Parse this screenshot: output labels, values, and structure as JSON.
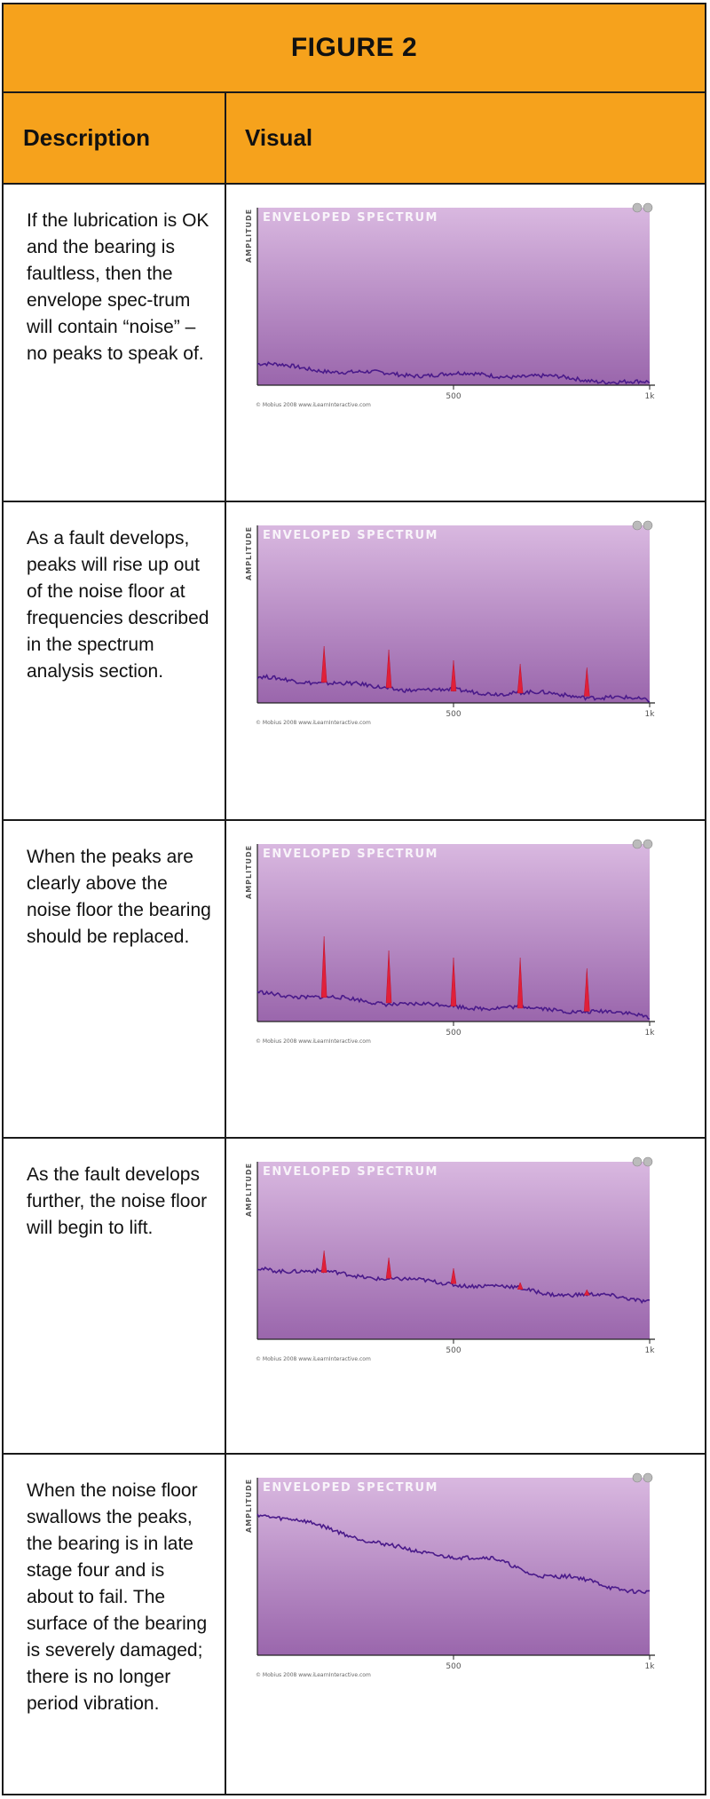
{
  "figure": {
    "title": "FIGURE 2",
    "headers": {
      "description": "Description",
      "visual": "Visual"
    }
  },
  "rows": [
    {
      "description": "If the lubrication is OK and the bearing is faultless, then the envelope spec-trum will contain “noise” – no peaks to speak of.",
      "chart_label": "ENVELOPED SPECTRUM",
      "axis_label": "AMPLITUDE",
      "ticks": [
        "500",
        "1k"
      ],
      "copyright": "© Mobius 2008 www.iLearnInteractive.com"
    },
    {
      "description": "As a fault develops, peaks will rise up out of the noise floor at frequencies described in the spectrum analysis section.",
      "chart_label": "ENVELOPED SPECTRUM",
      "axis_label": "AMPLITUDE",
      "ticks": [
        "500",
        "1k"
      ],
      "copyright": "© Mobius 2008 www.iLearnInteractive.com"
    },
    {
      "description": "When the peaks are clearly above the noise floor the bearing should be replaced.",
      "chart_label": "ENVELOPED SPECTRUM",
      "axis_label": "AMPLITUDE",
      "ticks": [
        "500",
        "1k"
      ],
      "copyright": "© Mobius 2008 www.iLearnInteractive.com"
    },
    {
      "description": "As the fault develops further, the noise floor will begin to lift.",
      "chart_label": "ENVELOPED SPECTRUM",
      "axis_label": "AMPLITUDE",
      "ticks": [
        "500",
        "1k"
      ],
      "copyright": "© Mobius 2008 www.iLearnInteractive.com"
    },
    {
      "description": "When the noise floor swallows the peaks, the bearing is in late stage four and is about to fail. The surface of the bearing is severely damaged; there is no longer period vibration.",
      "chart_label": "ENVELOPED SPECTRUM",
      "axis_label": "AMPLITUDE",
      "ticks": [
        "500",
        "1k"
      ],
      "copyright": "© Mobius 2008 www.iLearnInteractive.com"
    }
  ],
  "chart_data": [
    {
      "type": "line",
      "x_range": [
        0,
        1000
      ],
      "y_range": [
        0,
        100
      ],
      "noise_floor": [
        [
          0,
          12
        ],
        [
          100,
          10
        ],
        [
          250,
          7
        ],
        [
          400,
          6
        ],
        [
          550,
          6
        ],
        [
          700,
          5
        ],
        [
          850,
          3
        ],
        [
          1000,
          1
        ]
      ],
      "peaks": []
    },
    {
      "type": "line",
      "x_range": [
        0,
        1000
      ],
      "y_range": [
        0,
        100
      ],
      "noise_floor": [
        [
          0,
          14
        ],
        [
          150,
          12
        ],
        [
          300,
          9
        ],
        [
          450,
          7
        ],
        [
          600,
          6
        ],
        [
          750,
          5
        ],
        [
          900,
          3
        ],
        [
          1000,
          1
        ]
      ],
      "peaks": [
        {
          "x": 170,
          "y": 32
        },
        {
          "x": 335,
          "y": 30
        },
        {
          "x": 500,
          "y": 24
        },
        {
          "x": 670,
          "y": 22
        },
        {
          "x": 840,
          "y": 20
        }
      ]
    },
    {
      "type": "line",
      "x_range": [
        0,
        1000
      ],
      "y_range": [
        0,
        100
      ],
      "noise_floor": [
        [
          0,
          16
        ],
        [
          150,
          14
        ],
        [
          300,
          11
        ],
        [
          450,
          9
        ],
        [
          600,
          8
        ],
        [
          750,
          7
        ],
        [
          900,
          5
        ],
        [
          1000,
          3
        ]
      ],
      "peaks": [
        {
          "x": 170,
          "y": 48
        },
        {
          "x": 335,
          "y": 40
        },
        {
          "x": 500,
          "y": 36
        },
        {
          "x": 670,
          "y": 36
        },
        {
          "x": 840,
          "y": 30
        }
      ]
    },
    {
      "type": "line",
      "x_range": [
        0,
        1000
      ],
      "y_range": [
        0,
        100
      ],
      "noise_floor": [
        [
          0,
          40
        ],
        [
          150,
          38
        ],
        [
          300,
          35
        ],
        [
          450,
          32
        ],
        [
          600,
          30
        ],
        [
          750,
          26
        ],
        [
          900,
          24
        ],
        [
          1000,
          22
        ]
      ],
      "peaks": [
        {
          "x": 170,
          "y": 50
        },
        {
          "x": 335,
          "y": 46
        },
        {
          "x": 500,
          "y": 40
        },
        {
          "x": 670,
          "y": 32
        },
        {
          "x": 840,
          "y": 28
        }
      ]
    },
    {
      "type": "line",
      "x_range": [
        0,
        1000
      ],
      "y_range": [
        0,
        100
      ],
      "noise_floor": [
        [
          0,
          80
        ],
        [
          100,
          76
        ],
        [
          200,
          70
        ],
        [
          300,
          64
        ],
        [
          400,
          58
        ],
        [
          500,
          56
        ],
        [
          600,
          54
        ],
        [
          700,
          46
        ],
        [
          800,
          44
        ],
        [
          900,
          38
        ],
        [
          1000,
          36
        ]
      ],
      "peaks": []
    }
  ]
}
